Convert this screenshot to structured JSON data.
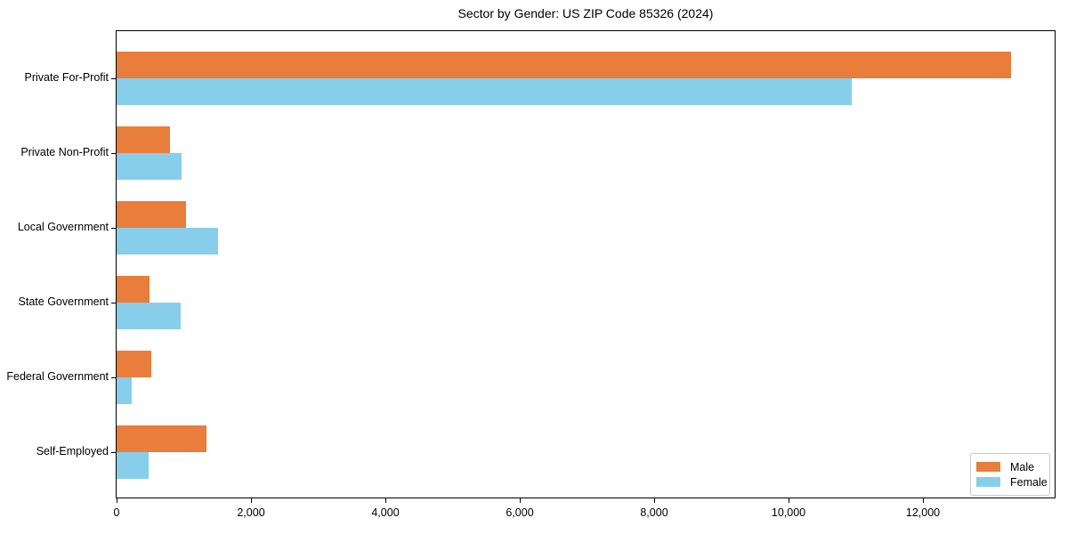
{
  "chart_data": {
    "type": "bar",
    "orientation": "horizontal",
    "title": "Sector by Gender: US ZIP Code 85326 (2024)",
    "categories": [
      "Private For-Profit",
      "Private Non-Profit",
      "Local Government",
      "State Government",
      "Federal Government",
      "Self-Employed"
    ],
    "series": [
      {
        "name": "Male",
        "color": "#e87d3c",
        "values": [
          13310,
          795,
          1030,
          490,
          515,
          1335
        ]
      },
      {
        "name": "Female",
        "color": "#87ceeb",
        "values": [
          10940,
          965,
          1510,
          950,
          225,
          475
        ]
      }
    ],
    "xlabel": "",
    "ylabel": "",
    "xlim": [
      0,
      13960
    ],
    "xticks": [
      0,
      2000,
      4000,
      6000,
      8000,
      10000,
      12000
    ],
    "xtick_labels": [
      "0",
      "2,000",
      "4,000",
      "6,000",
      "8,000",
      "10,000",
      "12,000"
    ],
    "legend_position": "lower right",
    "grid": false,
    "frame_color": "#000000"
  }
}
